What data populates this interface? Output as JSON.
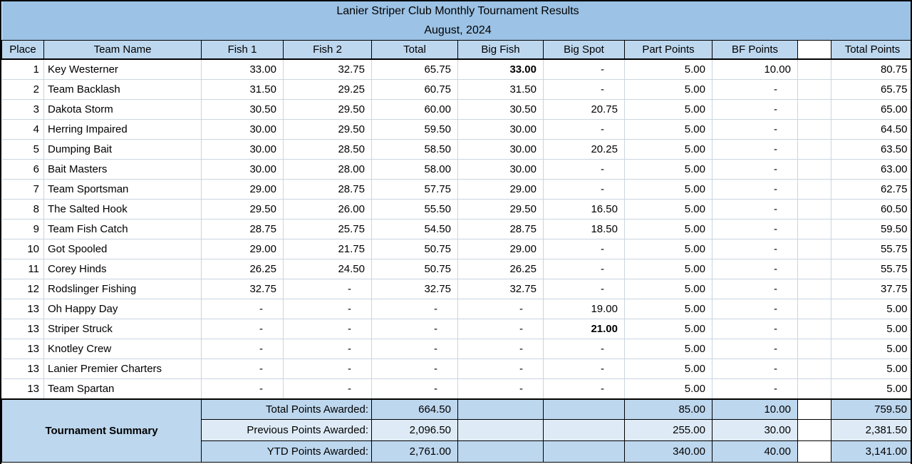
{
  "title_line1": "Lanier Striper Club Monthly Tournament Results",
  "title_line2": "August, 2024",
  "columns": [
    "Place",
    "Team Name",
    "Fish 1",
    "Fish 2",
    "Total",
    "Big Fish",
    "Big Spot",
    "Part Points",
    "BF Points",
    "",
    "Total Points"
  ],
  "rows": [
    {
      "place": "1",
      "team": "Key Westerner",
      "fish1": "33.00",
      "fish2": "32.75",
      "total": "65.75",
      "big_fish": "33.00",
      "big_spot": "-",
      "part_points": "5.00",
      "bf_points": "10.00",
      "total_points": "80.75",
      "bold_col": "big_fish"
    },
    {
      "place": "2",
      "team": "Team Backlash",
      "fish1": "31.50",
      "fish2": "29.25",
      "total": "60.75",
      "big_fish": "31.50",
      "big_spot": "-",
      "part_points": "5.00",
      "bf_points": "-",
      "total_points": "65.75"
    },
    {
      "place": "3",
      "team": "Dakota Storm",
      "fish1": "30.50",
      "fish2": "29.50",
      "total": "60.00",
      "big_fish": "30.50",
      "big_spot": "20.75",
      "part_points": "5.00",
      "bf_points": "-",
      "total_points": "65.00"
    },
    {
      "place": "4",
      "team": "Herring Impaired",
      "fish1": "30.00",
      "fish2": "29.50",
      "total": "59.50",
      "big_fish": "30.00",
      "big_spot": "-",
      "part_points": "5.00",
      "bf_points": "-",
      "total_points": "64.50"
    },
    {
      "place": "5",
      "team": "Dumping Bait",
      "fish1": "30.00",
      "fish2": "28.50",
      "total": "58.50",
      "big_fish": "30.00",
      "big_spot": "20.25",
      "part_points": "5.00",
      "bf_points": "-",
      "total_points": "63.50"
    },
    {
      "place": "6",
      "team": "Bait Masters",
      "fish1": "30.00",
      "fish2": "28.00",
      "total": "58.00",
      "big_fish": "30.00",
      "big_spot": "-",
      "part_points": "5.00",
      "bf_points": "-",
      "total_points": "63.00"
    },
    {
      "place": "7",
      "team": "Team Sportsman",
      "fish1": "29.00",
      "fish2": "28.75",
      "total": "57.75",
      "big_fish": "29.00",
      "big_spot": "-",
      "part_points": "5.00",
      "bf_points": "-",
      "total_points": "62.75"
    },
    {
      "place": "8",
      "team": "The Salted Hook",
      "fish1": "29.50",
      "fish2": "26.00",
      "total": "55.50",
      "big_fish": "29.50",
      "big_spot": "16.50",
      "part_points": "5.00",
      "bf_points": "-",
      "total_points": "60.50"
    },
    {
      "place": "9",
      "team": "Team Fish Catch",
      "fish1": "28.75",
      "fish2": "25.75",
      "total": "54.50",
      "big_fish": "28.75",
      "big_spot": "18.50",
      "part_points": "5.00",
      "bf_points": "-",
      "total_points": "59.50"
    },
    {
      "place": "10",
      "team": "Got Spooled",
      "fish1": "29.00",
      "fish2": "21.75",
      "total": "50.75",
      "big_fish": "29.00",
      "big_spot": "-",
      "part_points": "5.00",
      "bf_points": "-",
      "total_points": "55.75"
    },
    {
      "place": "11",
      "team": "Corey Hinds",
      "fish1": "26.25",
      "fish2": "24.50",
      "total": "50.75",
      "big_fish": "26.25",
      "big_spot": "-",
      "part_points": "5.00",
      "bf_points": "-",
      "total_points": "55.75"
    },
    {
      "place": "12",
      "team": "Rodslinger Fishing",
      "fish1": "32.75",
      "fish2": "-",
      "total": "32.75",
      "big_fish": "32.75",
      "big_spot": "-",
      "part_points": "5.00",
      "bf_points": "-",
      "total_points": "37.75"
    },
    {
      "place": "13",
      "team": "Oh Happy Day",
      "fish1": "-",
      "fish2": "-",
      "total": "-",
      "big_fish": "-",
      "big_spot": "19.00",
      "part_points": "5.00",
      "bf_points": "-",
      "total_points": "5.00"
    },
    {
      "place": "13",
      "team": "Striper Struck",
      "fish1": "-",
      "fish2": "-",
      "total": "-",
      "big_fish": "-",
      "big_spot": "21.00",
      "part_points": "5.00",
      "bf_points": "-",
      "total_points": "5.00",
      "bold_col": "big_spot"
    },
    {
      "place": "13",
      "team": "Knotley Crew",
      "fish1": "-",
      "fish2": "-",
      "total": "-",
      "big_fish": "-",
      "big_spot": "-",
      "part_points": "5.00",
      "bf_points": "-",
      "total_points": "5.00"
    },
    {
      "place": "13",
      "team": "Lanier Premier Charters",
      "fish1": "-",
      "fish2": "-",
      "total": "-",
      "big_fish": "-",
      "big_spot": "-",
      "part_points": "5.00",
      "bf_points": "-",
      "total_points": "5.00"
    },
    {
      "place": "13",
      "team": "Team Spartan",
      "fish1": "-",
      "fish2": "-",
      "total": "-",
      "big_fish": "-",
      "big_spot": "-",
      "part_points": "5.00",
      "bf_points": "-",
      "total_points": "5.00"
    }
  ],
  "summary": {
    "title": "Tournament Summary",
    "rows": [
      {
        "label": "Total Points Awarded:",
        "total": "664.50",
        "big_fish": "",
        "big_spot": "",
        "part_points": "85.00",
        "bf_points": "10.00",
        "total_points": "759.50"
      },
      {
        "label": "Previous Points Awarded:",
        "total": "2,096.50",
        "big_fish": "",
        "big_spot": "",
        "part_points": "255.00",
        "bf_points": "30.00",
        "total_points": "2,381.50"
      },
      {
        "label": "YTD Points Awarded:",
        "total": "2,761.00",
        "big_fish": "",
        "big_spot": "",
        "part_points": "340.00",
        "bf_points": "40.00",
        "total_points": "3,141.00"
      }
    ]
  },
  "colors": {
    "title_band_fill": "#9cc2e5",
    "header_fill": "#bdd7ee",
    "summary_fill": "#bdd7ee",
    "summary_alt_fill": "#deebf7",
    "grid_line": "#c9d5e0",
    "border": "#000000",
    "text": "#000000"
  }
}
